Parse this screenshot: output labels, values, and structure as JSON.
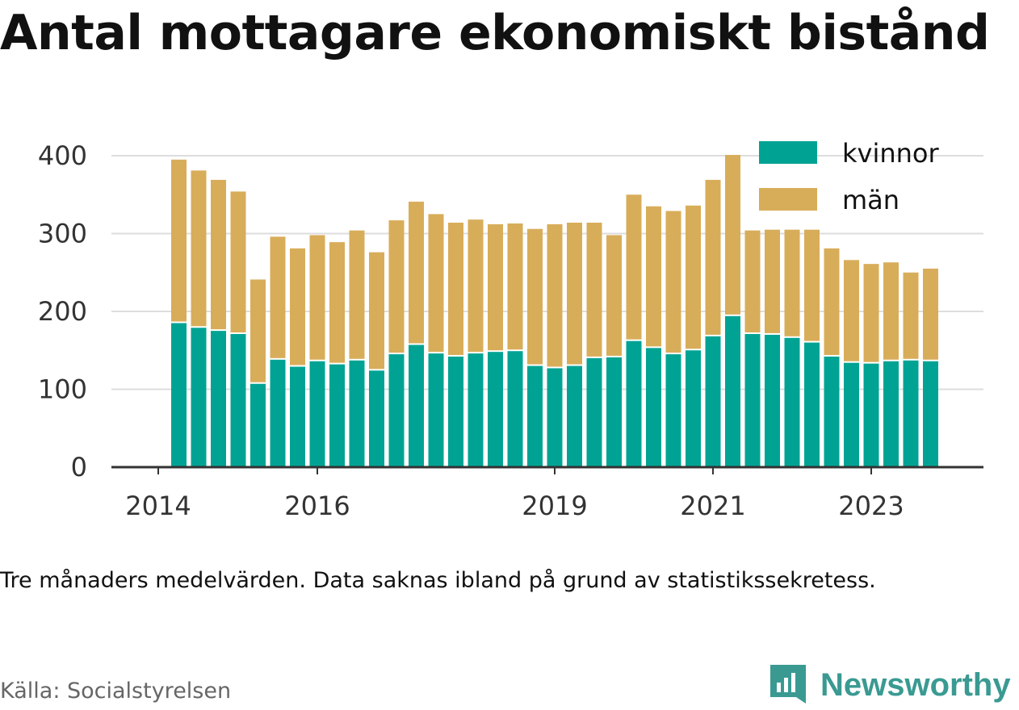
{
  "title": "Antal mottagare ekonomiskt bistånd",
  "note": "Tre månaders medelvärden. Data saknas ibland på grund av statistikssekretess.",
  "source": "Källa: Socialstyrelsen",
  "brand": "Newsworthy",
  "colors": {
    "kvinnor": "#00a393",
    "man": "#d8ad5a",
    "grid": "#dddddd",
    "axis": "#333333",
    "brand": "#3a9a92"
  },
  "chart_data": {
    "type": "bar",
    "stacked": true,
    "ylim": [
      0,
      420
    ],
    "yticks": [
      0,
      100,
      200,
      300,
      400
    ],
    "xticks": [
      {
        "label": "2014",
        "slot": -1
      },
      {
        "label": "2016",
        "slot": 7
      },
      {
        "label": "2019",
        "slot": 19
      },
      {
        "label": "2021",
        "slot": 27
      },
      {
        "label": "2023",
        "slot": 35
      }
    ],
    "legend": {
      "position": "top-right",
      "entries": [
        "kvinnor",
        "män"
      ]
    },
    "series": [
      {
        "name": "kvinnor",
        "values": [
          185,
          179,
          175,
          171,
          107,
          138,
          129,
          136,
          132,
          137,
          124,
          145,
          157,
          146,
          142,
          146,
          148,
          149,
          130,
          127,
          130,
          140,
          141,
          162,
          153,
          145,
          150,
          168,
          194,
          171,
          170,
          166,
          160,
          142,
          134,
          133,
          136,
          137,
          136
        ]
      },
      {
        "name": "män",
        "values": [
          210,
          202,
          194,
          183,
          134,
          158,
          152,
          162,
          157,
          167,
          152,
          172,
          184,
          179,
          172,
          172,
          164,
          164,
          176,
          185,
          184,
          174,
          157,
          188,
          182,
          184,
          186,
          201,
          207,
          133,
          135,
          139,
          145,
          139,
          132,
          128,
          127,
          113,
          119
        ]
      }
    ]
  }
}
